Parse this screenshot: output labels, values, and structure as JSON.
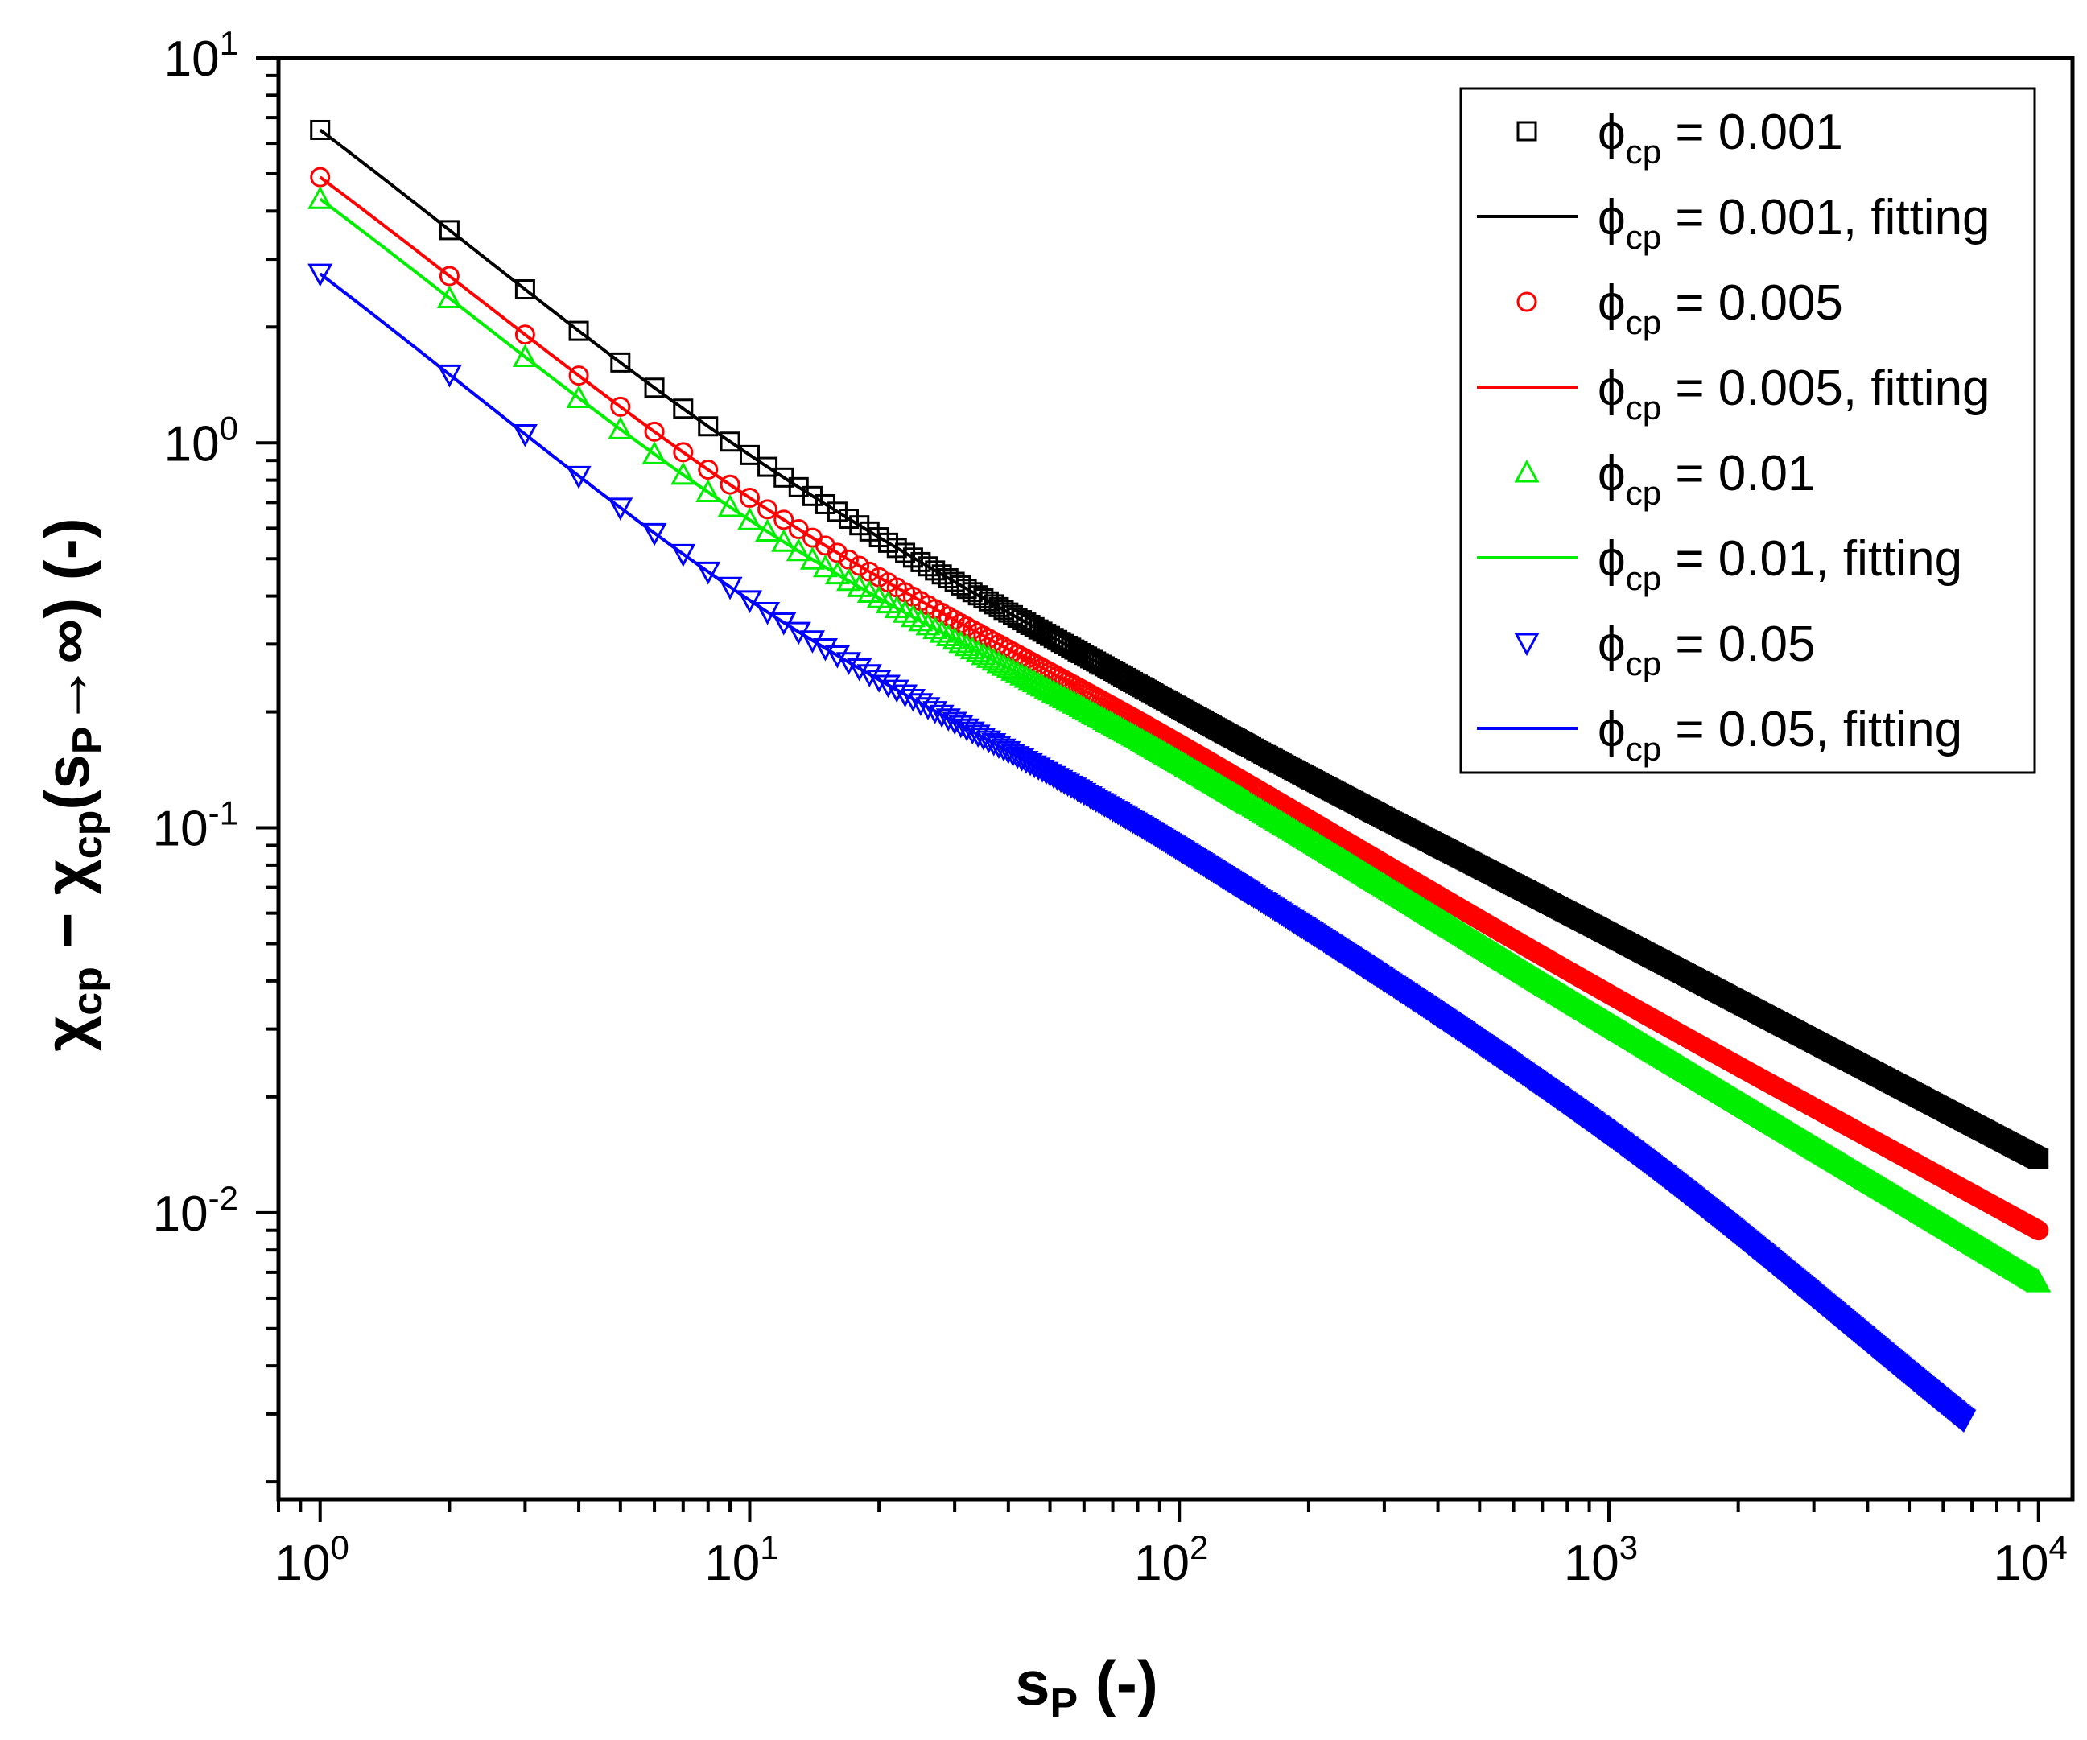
{
  "chart_data": {
    "type": "scatter",
    "x_scale": "log",
    "y_scale": "log",
    "xlim": [
      0.8,
      12000
    ],
    "ylim": [
      0.0018,
      10
    ],
    "xlabel": {
      "base": "s",
      "sub": "P",
      "unit": " (-)"
    },
    "ylabel": {
      "chi": "χ",
      "sub1": "cp",
      "minus": " − ",
      "chi2": "χ",
      "sub2": "cp",
      "open": "(s",
      "sub3": "P",
      "arrow": "→∞) (-)"
    },
    "x_ticks": [
      {
        "base": "10",
        "exp": "0",
        "value": 1
      },
      {
        "base": "10",
        "exp": "1",
        "value": 10
      },
      {
        "base": "10",
        "exp": "2",
        "value": 100
      },
      {
        "base": "10",
        "exp": "3",
        "value": 1000
      },
      {
        "base": "10",
        "exp": "4",
        "value": 10000
      }
    ],
    "y_ticks": [
      {
        "base": "10",
        "exp": "-2",
        "value": 0.01
      },
      {
        "base": "10",
        "exp": "-1",
        "value": 0.1
      },
      {
        "base": "10",
        "exp": "0",
        "value": 1
      },
      {
        "base": "10",
        "exp": "1",
        "value": 10
      }
    ],
    "series": [
      {
        "name": "ϕcp = 0.001",
        "phi_label": "ϕ",
        "phi_sub": "cp",
        "value_text": " = 0.001",
        "fit_text": " = 0.001, fitting",
        "color": "#000000",
        "marker": "square",
        "x_max": 10000,
        "points": [
          [
            1,
            6.5
          ],
          [
            10,
            0.93
          ],
          [
            100,
            0.205
          ],
          [
            1000,
            0.053
          ],
          [
            10000,
            0.0138
          ]
        ]
      },
      {
        "name": "ϕcp = 0.005",
        "phi_label": "ϕ",
        "phi_sub": "cp",
        "value_text": " = 0.005",
        "fit_text": " = 0.005, fitting",
        "color": "#ff0000",
        "marker": "circle",
        "x_max": 10000,
        "points": [
          [
            1,
            4.9
          ],
          [
            10,
            0.72
          ],
          [
            100,
            0.165
          ],
          [
            1000,
            0.037
          ],
          [
            10000,
            0.009
          ]
        ]
      },
      {
        "name": "ϕcp = 0.01",
        "phi_label": "ϕ",
        "phi_sub": "cp",
        "value_text": " = 0.01",
        "fit_text": " = 0.01, fitting",
        "color": "#00ee00",
        "marker": "triangle-up",
        "x_max": 10000,
        "points": [
          [
            1,
            4.3
          ],
          [
            10,
            0.63
          ],
          [
            100,
            0.148
          ],
          [
            1000,
            0.031
          ],
          [
            10000,
            0.0066
          ]
        ]
      },
      {
        "name": "ϕcp = 0.05",
        "phi_label": "ϕ",
        "phi_sub": "cp",
        "value_text": " = 0.05",
        "fit_text": " = 0.05, fitting",
        "color": "#0000ff",
        "marker": "triangle-down",
        "x_max": 6700,
        "points": [
          [
            1,
            2.75
          ],
          [
            10,
            0.39
          ],
          [
            100,
            0.088
          ],
          [
            1000,
            0.016
          ],
          [
            6700,
            0.0029
          ]
        ]
      }
    ],
    "legend_position": "top-right"
  }
}
